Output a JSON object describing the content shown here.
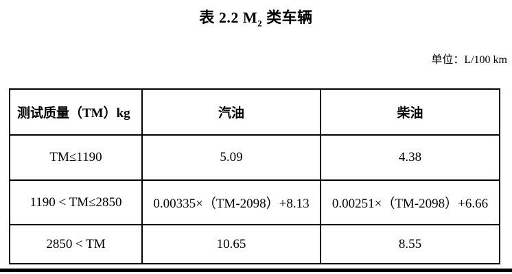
{
  "title": {
    "prefix": "表 2.2 M",
    "subscript": "2",
    "suffix": " 类车辆"
  },
  "unit_label": "单位：L/100 km",
  "table": {
    "headers": [
      "测试质量（TM）kg",
      "汽油",
      "柴油"
    ],
    "rows": [
      {
        "cells": [
          "TM≤1190",
          "5.09",
          "4.38"
        ]
      },
      {
        "cells": [
          "1190 < TM≤2850",
          "0.00335×（TM-2098）+8.13",
          "0.00251×（TM-2098）+6.66"
        ]
      },
      {
        "cells": [
          "2850 < TM",
          "10.65",
          "8.55"
        ]
      }
    ]
  },
  "colors": {
    "text": "#000000",
    "border": "#000000",
    "background": "#ffffff"
  }
}
